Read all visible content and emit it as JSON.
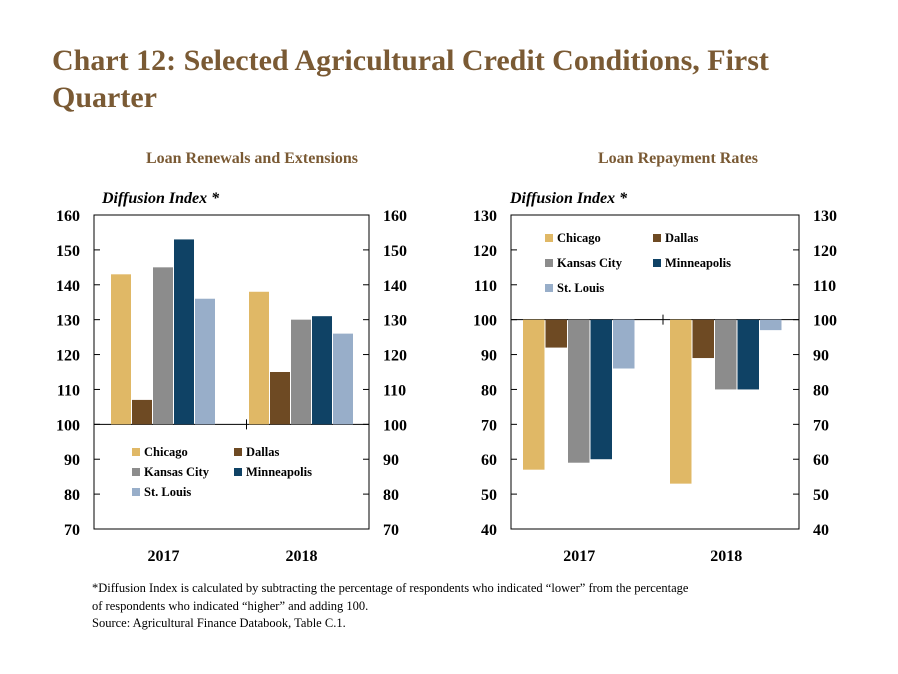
{
  "title": "Chart 12: Selected Agricultural Credit Conditions, First Quarter",
  "footnote_lines": [
    "*Diffusion Index is calculated by subtracting the percentage of respondents who indicated “lower” from the percentage",
    "of respondents who indicated “higher” and adding 100.",
    "Source: Agricultural Finance Databook, Table C.1."
  ],
  "colors": {
    "title": "#7a5a34",
    "Chicago": "#e0b866",
    "Dallas": "#6e4a23",
    "Kansas City": "#8c8c8c",
    "Minneapolis": "#0f4265",
    "St. Louis": "#98aec9"
  },
  "chart_data": [
    {
      "type": "bar",
      "title": "Loan Renewals and Extensions",
      "ylabel": "Diffusion Index *",
      "ylim": [
        70,
        160
      ],
      "yticks": [
        70,
        80,
        90,
        100,
        110,
        120,
        130,
        140,
        150,
        160
      ],
      "baseline": 100,
      "secondary_axis": true,
      "categories": [
        "2017",
        "2018"
      ],
      "legend_position": "bottom-left",
      "series": [
        {
          "name": "Chicago",
          "values": [
            143,
            138
          ]
        },
        {
          "name": "Dallas",
          "values": [
            107,
            115
          ]
        },
        {
          "name": "Kansas City",
          "values": [
            145,
            130
          ]
        },
        {
          "name": "Minneapolis",
          "values": [
            153,
            131
          ]
        },
        {
          "name": "St. Louis",
          "values": [
            136,
            126
          ]
        }
      ]
    },
    {
      "type": "bar",
      "title": "Loan Repayment Rates",
      "ylabel": "Diffusion Index *",
      "ylim": [
        40,
        130
      ],
      "yticks": [
        40,
        50,
        60,
        70,
        80,
        90,
        100,
        110,
        120,
        130
      ],
      "baseline": 100,
      "secondary_axis": true,
      "categories": [
        "2017",
        "2018"
      ],
      "legend_position": "top-left",
      "series": [
        {
          "name": "Chicago",
          "values": [
            57,
            53
          ]
        },
        {
          "name": "Dallas",
          "values": [
            92,
            89
          ]
        },
        {
          "name": "Kansas City",
          "values": [
            59,
            80
          ]
        },
        {
          "name": "Minneapolis",
          "values": [
            60,
            80
          ]
        },
        {
          "name": "St. Louis",
          "values": [
            86,
            97
          ]
        }
      ]
    }
  ]
}
